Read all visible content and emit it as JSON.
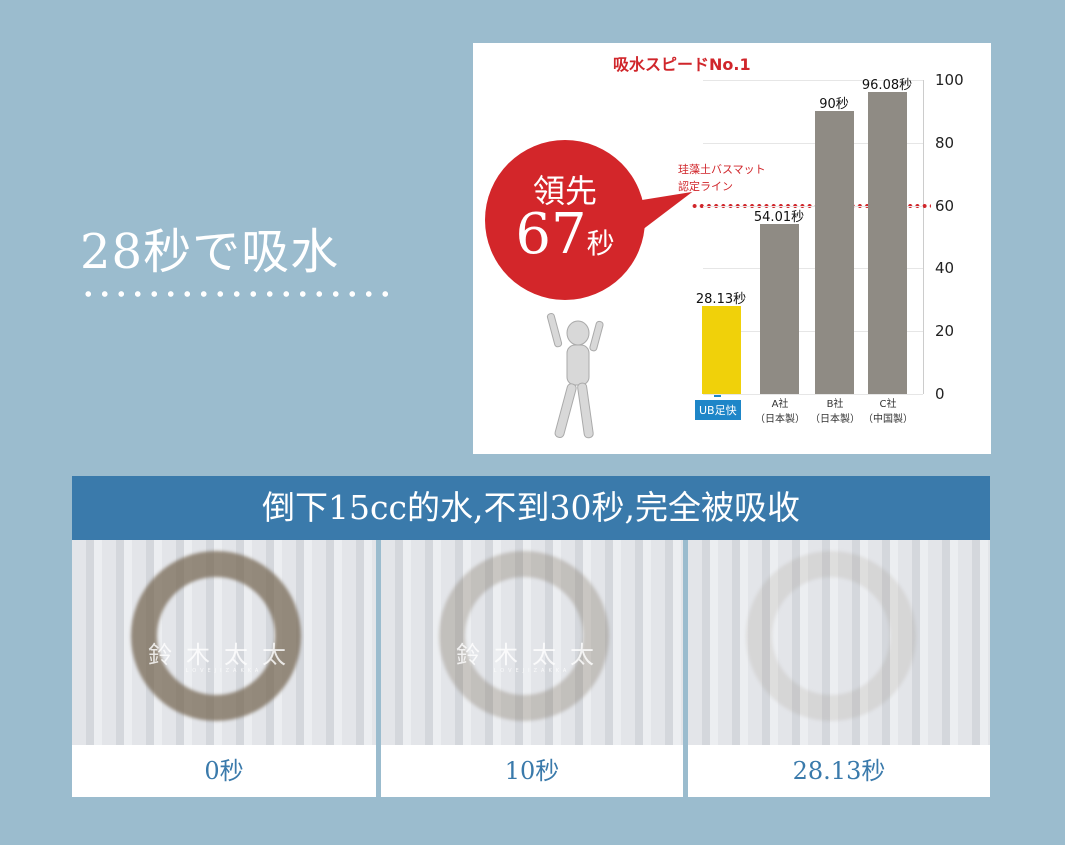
{
  "headline": "28秒で吸水",
  "chart": {
    "bubble_line1": "領先",
    "bubble_number": "67",
    "bubble_unit": "秒",
    "ub_badge": "UB足快",
    "reference_label_line1": "珪藻土バスマット",
    "reference_label_line2": "認定ライン",
    "watermark_main": "鈴木太太",
    "watermark_sub": "LOVEJIZAKKA"
  },
  "chart_data": {
    "type": "bar",
    "title": "吸水スピードNo.1",
    "categories": [
      "UB足快",
      "A社（日本製）",
      "B社（日本製）",
      "C社（中国製）"
    ],
    "category_labels": [
      {
        "line1": "",
        "line2": ""
      },
      {
        "line1": "A社",
        "line2": "（日本製）"
      },
      {
        "line1": "B社",
        "line2": "（日本製）"
      },
      {
        "line1": "C社",
        "line2": "（中国製）"
      }
    ],
    "values": [
      28.13,
      54.01,
      90,
      96.08
    ],
    "value_labels": [
      "28.13秒",
      "54.01秒",
      "90秒",
      "96.08秒"
    ],
    "colors": [
      "#f0d10a",
      "#8f8b84",
      "#8f8b84",
      "#8f8b84"
    ],
    "ylim": [
      0,
      100
    ],
    "yticks": [
      "0",
      "20",
      "40",
      "60",
      "80",
      "100"
    ],
    "reference_line": 60,
    "reference_color": "#d0262b",
    "grid": true,
    "yaxis_position": "right"
  },
  "banner": "倒下15cc的水,不到30秒,完全被吸收",
  "panels": [
    {
      "label": "0秒",
      "stain": 0.75
    },
    {
      "label": "10秒",
      "stain": 0.3
    },
    {
      "label": "28.13秒",
      "stain": 0.12
    }
  ]
}
